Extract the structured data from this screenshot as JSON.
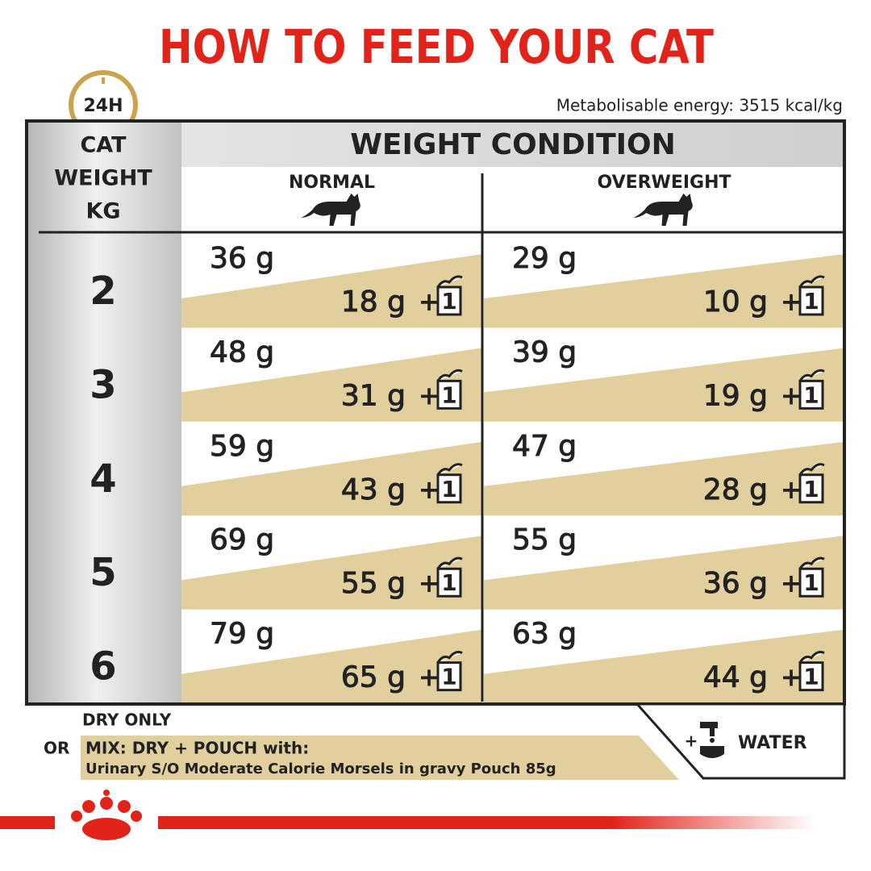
{
  "header": {
    "title": "HOW TO FEED YOUR CAT",
    "badge": "24H",
    "energy": "Metabolisable energy: 3515 kcal/kg"
  },
  "table": {
    "weight_header": [
      "CAT",
      "WEIGHT",
      "KG"
    ],
    "condition_header": "WEIGHT CONDITION",
    "columns": [
      "NORMAL",
      "OVERWEIGHT"
    ],
    "rows": [
      {
        "weight": "2",
        "cells": [
          {
            "dry": "36 g",
            "mix": "18 g",
            "plus": "+",
            "pouches": "1"
          },
          {
            "dry": "29 g",
            "mix": "10 g",
            "plus": "+",
            "pouches": "1"
          }
        ]
      },
      {
        "weight": "3",
        "cells": [
          {
            "dry": "48 g",
            "mix": "31 g",
            "plus": "+",
            "pouches": "1"
          },
          {
            "dry": "39 g",
            "mix": "19 g",
            "plus": "+",
            "pouches": "1"
          }
        ]
      },
      {
        "weight": "4",
        "cells": [
          {
            "dry": "59 g",
            "mix": "43 g",
            "plus": "+",
            "pouches": "1"
          },
          {
            "dry": "47 g",
            "mix": "28 g",
            "plus": "+",
            "pouches": "1"
          }
        ]
      },
      {
        "weight": "5",
        "cells": [
          {
            "dry": "69 g",
            "mix": "55 g",
            "plus": "+",
            "pouches": "1"
          },
          {
            "dry": "55 g",
            "mix": "36 g",
            "plus": "+",
            "pouches": "1"
          }
        ]
      },
      {
        "weight": "6",
        "cells": [
          {
            "dry": "79 g",
            "mix": "65 g",
            "plus": "+",
            "pouches": "1"
          },
          {
            "dry": "63 g",
            "mix": "44 g",
            "plus": "+",
            "pouches": "1"
          }
        ]
      }
    ]
  },
  "footer": {
    "dry_only": "DRY ONLY",
    "or": "OR",
    "mix": "MIX: DRY + POUCH with:",
    "pouch": "Urinary S/O Moderate Calorie Morsels in gravy Pouch 85g",
    "plus": "+",
    "water": "WATER"
  }
}
